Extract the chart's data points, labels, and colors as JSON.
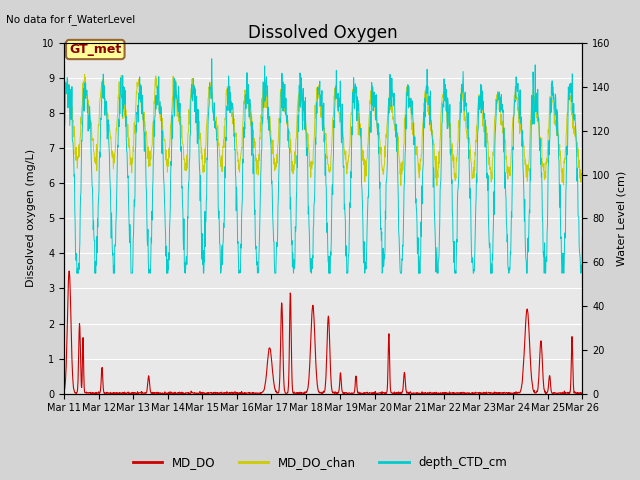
{
  "title": "Dissolved Oxygen",
  "top_left_text": "No data for f_WaterLevel",
  "annotation_text": "GT_met",
  "ylabel_left": "Dissolved oxygen (mg/L)",
  "ylabel_right": "Water Level (cm)",
  "ylim_left": [
    0.0,
    10.0
  ],
  "ylim_right": [
    0,
    160
  ],
  "yticks_left": [
    0.0,
    1.0,
    2.0,
    3.0,
    4.0,
    5.0,
    6.0,
    7.0,
    8.0,
    9.0,
    10.0
  ],
  "yticks_right": [
    0,
    20,
    40,
    60,
    80,
    100,
    120,
    140,
    160
  ],
  "xtick_labels": [
    "Mar 11",
    "Mar 12",
    "Mar 13",
    "Mar 14",
    "Mar 15",
    "Mar 16",
    "Mar 17",
    "Mar 18",
    "Mar 19",
    "Mar 20",
    "Mar 21",
    "Mar 22",
    "Mar 23",
    "Mar 24",
    "Mar 25",
    "Mar 26"
  ],
  "color_MD_DO": "#cc0000",
  "color_MD_DO_chan": "#cccc00",
  "color_depth_CTD": "#00cccc",
  "legend_labels": [
    "MD_DO",
    "MD_DO_chan",
    "depth_CTD_cm"
  ],
  "fig_bg_color": "#d4d4d4",
  "plot_bg_color": "#e8e8e8",
  "title_fontsize": 12,
  "label_fontsize": 8,
  "tick_fontsize": 7,
  "annotation_fontsize": 9
}
